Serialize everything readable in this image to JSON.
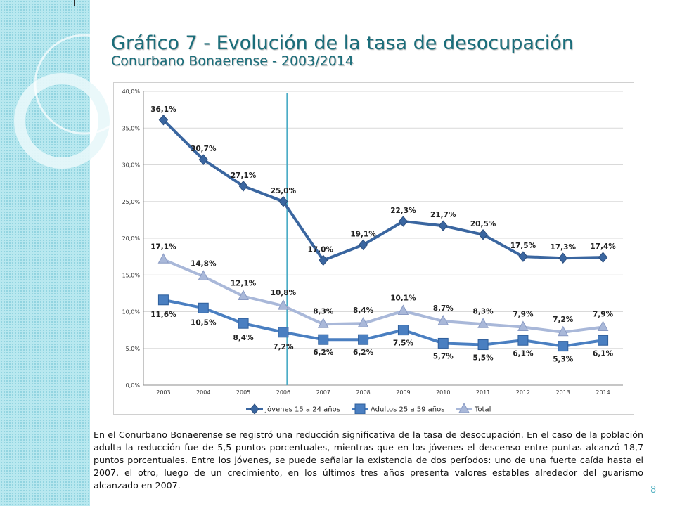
{
  "slide": {
    "title": "Gráfico 7 - Evolución de la tasa de desocupación",
    "subtitle": "Conurbano Bonaerense - 2003/2014",
    "body": "En el Conurbano Bonaerense se registró una reducción significativa de la tasa de desocupación. En el caso de la población adulta la reducción fue de 5,5 puntos porcentuales, mientras que en los jóvenes el descenso entre puntas alcanzó 18,7 puntos porcentuales.  Entre los jóvenes, se puede señalar la existencia de dos períodos: uno de una fuerte caída hasta el 2007, el otro, luego de un crecimiento, en los últimos tres años presenta valores estables alrededor del guarismo alcanzado en 2007.",
    "page_number": "8"
  },
  "colors": {
    "title": "#1a6d7a",
    "band": "#b8e8ef",
    "divider": "#4bacc6",
    "jovenes": "#3a66a0",
    "adultos": "#4a7fc1",
    "total": "#a9b8d9"
  },
  "chart_data": {
    "type": "line",
    "categories": [
      "2003",
      "2004",
      "2005",
      "2006",
      "2007",
      "2008",
      "2009",
      "2010",
      "2011",
      "2012",
      "2013",
      "2014"
    ],
    "y_ticks": [
      "0,0%",
      "5,0%",
      "10,0%",
      "15,0%",
      "20,0%",
      "25,0%",
      "30,0%",
      "35,0%",
      "40,0%"
    ],
    "ylim": [
      0,
      40
    ],
    "grid": true,
    "legend_position": "bottom",
    "vertical_marker_between": [
      "2006",
      "2007"
    ],
    "series": [
      {
        "name": "Jóvenes 15 a 24 años",
        "marker": "diamond",
        "color": "#3a66a0",
        "values": [
          36.1,
          30.7,
          27.1,
          25.0,
          17.0,
          19.1,
          22.3,
          21.7,
          20.5,
          17.5,
          17.3,
          17.4
        ],
        "labels": [
          "36,1%",
          "30,7%",
          "27,1%",
          "25,0%",
          "17,0%",
          "19,1%",
          "22,3%",
          "21,7%",
          "20,5%",
          "17,5%",
          "17,3%",
          "17,4%"
        ]
      },
      {
        "name": "Adultos 25 a 59 años",
        "marker": "square",
        "color": "#4a7fc1",
        "values": [
          11.6,
          10.5,
          8.4,
          7.2,
          6.2,
          6.2,
          7.5,
          5.7,
          5.5,
          6.1,
          5.3,
          6.1
        ],
        "labels": [
          "11,6%",
          "10,5%",
          "8,4%",
          "7,2%",
          "6,2%",
          "6,2%",
          "7,5%",
          "5,7%",
          "5,5%",
          "6,1%",
          "5,3%",
          "6,1%"
        ]
      },
      {
        "name": "Total",
        "marker": "triangle",
        "color": "#a9b8d9",
        "values": [
          17.1,
          14.8,
          12.1,
          10.8,
          8.3,
          8.4,
          10.1,
          8.7,
          8.3,
          7.9,
          7.2,
          7.9
        ],
        "labels": [
          "17,1%",
          "14,8%",
          "12,1%",
          "10,8%",
          "8,3%",
          "8,4%",
          "10,1%",
          "8,7%",
          "8,3%",
          "7,9%",
          "7,2%",
          "7,9%"
        ]
      }
    ]
  }
}
